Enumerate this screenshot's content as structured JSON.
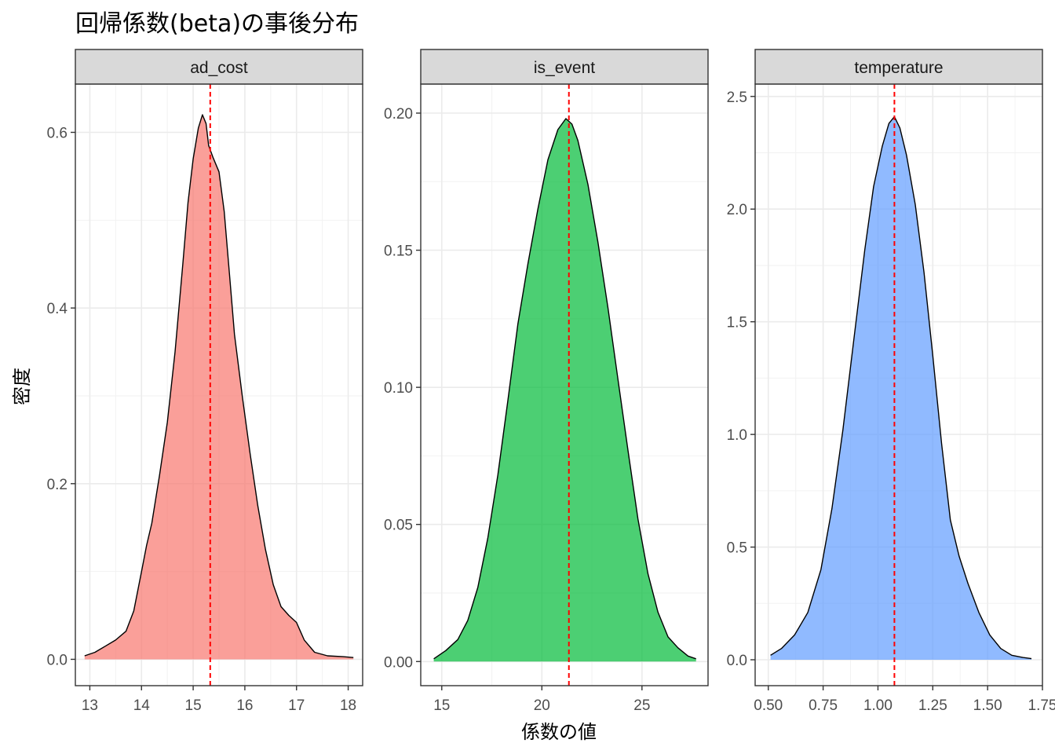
{
  "title": "回帰係数(beta)の事後分布",
  "xlabel": "係数の値",
  "ylabel": "密度",
  "colors": {
    "ad_cost": "#F8766D",
    "is_event": "#00BA38",
    "temperature": "#619CFF",
    "mean_line": "#FF0000",
    "strip_bg": "#D9D9D9"
  },
  "chart_data": [
    {
      "type": "area",
      "facet": "ad_cost",
      "fill": "#F8766D",
      "xlim": [
        12.72,
        18.28
      ],
      "ylim": [
        -0.03,
        0.655
      ],
      "xticks": [
        13,
        14,
        15,
        16,
        17,
        18
      ],
      "xtick_labels": [
        "13",
        "14",
        "15",
        "16",
        "17",
        "18"
      ],
      "yticks": [
        0.0,
        0.2,
        0.4,
        0.6
      ],
      "ytick_labels": [
        "0.0",
        "0.2",
        "0.4",
        "0.6"
      ],
      "mean": 15.33,
      "x": [
        12.9,
        13.1,
        13.3,
        13.5,
        13.7,
        13.85,
        14.0,
        14.1,
        14.2,
        14.35,
        14.5,
        14.65,
        14.8,
        14.9,
        15.0,
        15.1,
        15.18,
        15.25,
        15.3,
        15.38,
        15.5,
        15.6,
        15.7,
        15.8,
        15.95,
        16.1,
        16.25,
        16.4,
        16.55,
        16.7,
        16.85,
        17.0,
        17.15,
        17.35,
        17.6,
        17.9,
        18.1
      ],
      "y": [
        0.004,
        0.008,
        0.015,
        0.022,
        0.032,
        0.055,
        0.1,
        0.13,
        0.155,
        0.21,
        0.27,
        0.35,
        0.45,
        0.52,
        0.57,
        0.605,
        0.62,
        0.61,
        0.585,
        0.572,
        0.555,
        0.51,
        0.44,
        0.37,
        0.3,
        0.235,
        0.175,
        0.125,
        0.085,
        0.06,
        0.05,
        0.042,
        0.022,
        0.008,
        0.004,
        0.003,
        0.002
      ]
    },
    {
      "type": "area",
      "facet": "is_event",
      "fill": "#00BA38",
      "xlim": [
        13.95,
        28.3
      ],
      "ylim": [
        -0.0088,
        0.2106
      ],
      "xticks": [
        15,
        20,
        25
      ],
      "xtick_labels": [
        "15",
        "20",
        "25"
      ],
      "yticks": [
        0.0,
        0.05,
        0.1,
        0.15,
        0.2
      ],
      "ytick_labels": [
        "0.00",
        "0.05",
        "0.10",
        "0.15",
        "0.20"
      ],
      "mean": 21.35,
      "x": [
        14.6,
        15.2,
        15.8,
        16.3,
        16.8,
        17.3,
        17.8,
        18.3,
        18.8,
        19.3,
        19.8,
        20.3,
        20.8,
        21.2,
        21.5,
        21.8,
        22.3,
        22.8,
        23.3,
        23.8,
        24.3,
        24.8,
        25.3,
        25.8,
        26.3,
        26.8,
        27.3,
        27.7
      ],
      "y": [
        0.001,
        0.004,
        0.008,
        0.015,
        0.027,
        0.045,
        0.068,
        0.095,
        0.123,
        0.145,
        0.165,
        0.183,
        0.194,
        0.198,
        0.196,
        0.19,
        0.174,
        0.153,
        0.129,
        0.103,
        0.077,
        0.052,
        0.032,
        0.018,
        0.009,
        0.005,
        0.002,
        0.001
      ]
    },
    {
      "type": "area",
      "facet": "temperature",
      "fill": "#619CFF",
      "xlim": [
        0.44,
        1.75
      ],
      "ylim": [
        -0.115,
        2.555
      ],
      "xticks": [
        0.5,
        0.75,
        1.0,
        1.25,
        1.5,
        1.75
      ],
      "xtick_labels": [
        "0.50",
        "0.75",
        "1.00",
        "1.25",
        "1.50",
        "1.75"
      ],
      "yticks": [
        0.0,
        0.5,
        1.0,
        1.5,
        2.0,
        2.5
      ],
      "ytick_labels": [
        "0.0",
        "0.5",
        "1.0",
        "1.5",
        "2.0",
        "2.5"
      ],
      "mean": 1.075,
      "x": [
        0.51,
        0.56,
        0.62,
        0.68,
        0.74,
        0.79,
        0.84,
        0.89,
        0.94,
        0.98,
        1.02,
        1.05,
        1.075,
        1.1,
        1.13,
        1.17,
        1.21,
        1.25,
        1.29,
        1.33,
        1.37,
        1.41,
        1.46,
        1.51,
        1.56,
        1.61,
        1.66,
        1.7
      ],
      "y": [
        0.02,
        0.05,
        0.11,
        0.21,
        0.4,
        0.67,
        1.02,
        1.42,
        1.82,
        2.1,
        2.28,
        2.38,
        2.41,
        2.36,
        2.24,
        2.02,
        1.72,
        1.35,
        0.96,
        0.62,
        0.46,
        0.34,
        0.21,
        0.11,
        0.05,
        0.02,
        0.01,
        0.005
      ]
    }
  ]
}
